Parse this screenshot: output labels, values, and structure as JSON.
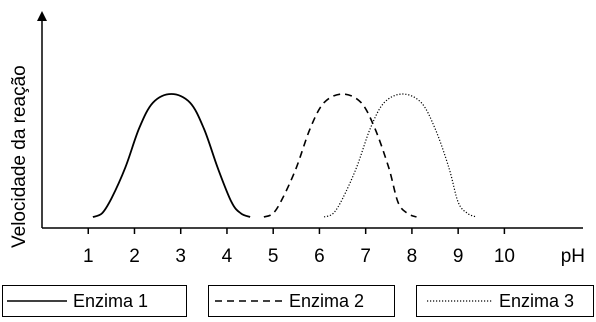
{
  "chart_data": {
    "type": "line",
    "ylabel": "Velocidade da reação",
    "xlabel": "pH",
    "x_ticks": [
      "1",
      "2",
      "3",
      "4",
      "5",
      "6",
      "7",
      "8",
      "9",
      "10"
    ],
    "xlim": [
      0,
      11.7
    ],
    "grid": false,
    "legend_position": "bottom",
    "series": [
      {
        "name": "Enzima 1",
        "style": "solid",
        "color": "#000000",
        "x": [
          1.1,
          1.3,
          1.5,
          1.8,
          2.1,
          2.4,
          2.8,
          3.2,
          3.5,
          3.8,
          4.1,
          4.3,
          4.5
        ],
        "y": [
          0.0,
          0.03,
          0.15,
          0.4,
          0.72,
          0.93,
          1.0,
          0.93,
          0.72,
          0.4,
          0.12,
          0.03,
          0.0
        ]
      },
      {
        "name": "Enzima 2",
        "style": "dashed",
        "color": "#000000",
        "x": [
          4.8,
          5.0,
          5.2,
          5.5,
          5.8,
          6.1,
          6.5,
          6.9,
          7.2,
          7.5,
          7.7,
          7.9,
          8.1
        ],
        "y": [
          0.0,
          0.03,
          0.15,
          0.4,
          0.72,
          0.93,
          1.0,
          0.93,
          0.72,
          0.4,
          0.12,
          0.03,
          0.0
        ]
      },
      {
        "name": "Enzima 3",
        "style": "dotted",
        "color": "#000000",
        "x": [
          6.1,
          6.3,
          6.5,
          6.8,
          7.1,
          7.4,
          7.8,
          8.2,
          8.5,
          8.8,
          9.0,
          9.2,
          9.4
        ],
        "y": [
          0.0,
          0.03,
          0.15,
          0.4,
          0.72,
          0.93,
          1.0,
          0.93,
          0.72,
          0.4,
          0.12,
          0.03,
          0.0
        ]
      }
    ]
  }
}
